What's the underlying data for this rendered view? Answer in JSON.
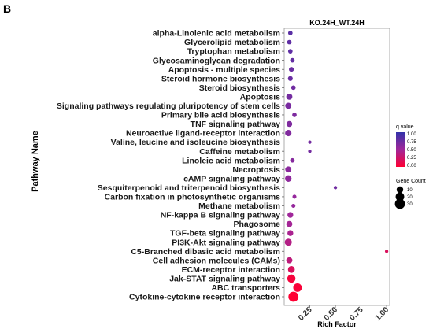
{
  "panel_label": "B",
  "chart_data": {
    "type": "scatter",
    "facet_title": "KO.24H_WT.24H",
    "xlabel": "Rich Factor",
    "ylabel": "Pathway Name",
    "xlim": [
      0.0,
      1.03
    ],
    "xticks": [
      "0.25",
      "0.50",
      "0.75",
      "1.00"
    ],
    "xtick_values": [
      0.25,
      0.5,
      0.75,
      1.0
    ],
    "grid": false,
    "legend_position": "right",
    "color_legend": {
      "title": "q.value",
      "labels": [
        "1.00",
        "0.75",
        "0.50",
        "0.25",
        "0.00"
      ],
      "low_color": "#ff0033",
      "high_color": "#3333aa"
    },
    "size_legend": {
      "title": "Gene Count",
      "labels": [
        "10",
        "20",
        "30"
      ],
      "values": [
        10,
        20,
        30
      ]
    },
    "points": [
      {
        "pathway": "alpha-Linolenic acid metabolism",
        "rich_factor": 0.06,
        "qvalue": 0.82,
        "gene_count": 3
      },
      {
        "pathway": "Glycerolipid metabolism",
        "rich_factor": 0.05,
        "qvalue": 0.8,
        "gene_count": 3
      },
      {
        "pathway": "Tryptophan metabolism",
        "rich_factor": 0.06,
        "qvalue": 0.8,
        "gene_count": 3
      },
      {
        "pathway": "Glycosaminoglycan degradation",
        "rich_factor": 0.08,
        "qvalue": 0.78,
        "gene_count": 3
      },
      {
        "pathway": "Apoptosis - multiple species",
        "rich_factor": 0.07,
        "qvalue": 0.75,
        "gene_count": 4
      },
      {
        "pathway": "Steroid hormone biosynthesis",
        "rich_factor": 0.06,
        "qvalue": 0.75,
        "gene_count": 4
      },
      {
        "pathway": "Steroid biosynthesis",
        "rich_factor": 0.09,
        "qvalue": 0.72,
        "gene_count": 3
      },
      {
        "pathway": "Apoptosis",
        "rich_factor": 0.05,
        "qvalue": 0.7,
        "gene_count": 8
      },
      {
        "pathway": "Signaling pathways regulating pluripotency of stem cells",
        "rich_factor": 0.04,
        "qvalue": 0.68,
        "gene_count": 8
      },
      {
        "pathway": "Primary bile acid biosynthesis",
        "rich_factor": 0.1,
        "qvalue": 0.66,
        "gene_count": 3
      },
      {
        "pathway": "TNF signaling pathway",
        "rich_factor": 0.05,
        "qvalue": 0.65,
        "gene_count": 7
      },
      {
        "pathway": "Neuroactive ligand-receptor interaction",
        "rich_factor": 0.04,
        "qvalue": 0.64,
        "gene_count": 9
      },
      {
        "pathway": "Valine, leucine and isoleucine biosynthesis",
        "rich_factor": 0.25,
        "qvalue": 0.7,
        "gene_count": 1
      },
      {
        "pathway": "Caffeine metabolism",
        "rich_factor": 0.25,
        "qvalue": 0.7,
        "gene_count": 1
      },
      {
        "pathway": "Linoleic acid metabolism",
        "rich_factor": 0.08,
        "qvalue": 0.62,
        "gene_count": 3
      },
      {
        "pathway": "Necroptosis",
        "rich_factor": 0.04,
        "qvalue": 0.6,
        "gene_count": 8
      },
      {
        "pathway": "cAMP signaling pathway",
        "rich_factor": 0.04,
        "qvalue": 0.58,
        "gene_count": 10
      },
      {
        "pathway": "Sesquiterpenoid and triterpenoid biosynthesis",
        "rich_factor": 0.5,
        "qvalue": 0.72,
        "gene_count": 1
      },
      {
        "pathway": "Carbon fixation in photosynthetic organisms",
        "rich_factor": 0.1,
        "qvalue": 0.55,
        "gene_count": 2
      },
      {
        "pathway": "Methane metabolism",
        "rich_factor": 0.09,
        "qvalue": 0.55,
        "gene_count": 2
      },
      {
        "pathway": "NF-kappa B signaling pathway",
        "rich_factor": 0.06,
        "qvalue": 0.5,
        "gene_count": 7
      },
      {
        "pathway": "Phagosome",
        "rich_factor": 0.05,
        "qvalue": 0.48,
        "gene_count": 8
      },
      {
        "pathway": "TGF-beta signaling pathway",
        "rich_factor": 0.06,
        "qvalue": 0.45,
        "gene_count": 7
      },
      {
        "pathway": "PI3K-Akt signaling pathway",
        "rich_factor": 0.04,
        "qvalue": 0.4,
        "gene_count": 12
      },
      {
        "pathway": "C5-Branched dibasic acid metabolism",
        "rich_factor": 1.0,
        "qvalue": 0.2,
        "gene_count": 1
      },
      {
        "pathway": "Cell adhesion molecules (CAMs)",
        "rich_factor": 0.05,
        "qvalue": 0.35,
        "gene_count": 8
      },
      {
        "pathway": "ECM-receptor interaction",
        "rich_factor": 0.07,
        "qvalue": 0.2,
        "gene_count": 11
      },
      {
        "pathway": "Jak-STAT signaling pathway",
        "rich_factor": 0.07,
        "qvalue": 0.05,
        "gene_count": 18
      },
      {
        "pathway": "ABC transporters",
        "rich_factor": 0.13,
        "qvalue": 0.03,
        "gene_count": 20
      },
      {
        "pathway": "Cytokine-cytokine receptor interaction",
        "rich_factor": 0.09,
        "qvalue": 0.0,
        "gene_count": 30
      }
    ]
  }
}
